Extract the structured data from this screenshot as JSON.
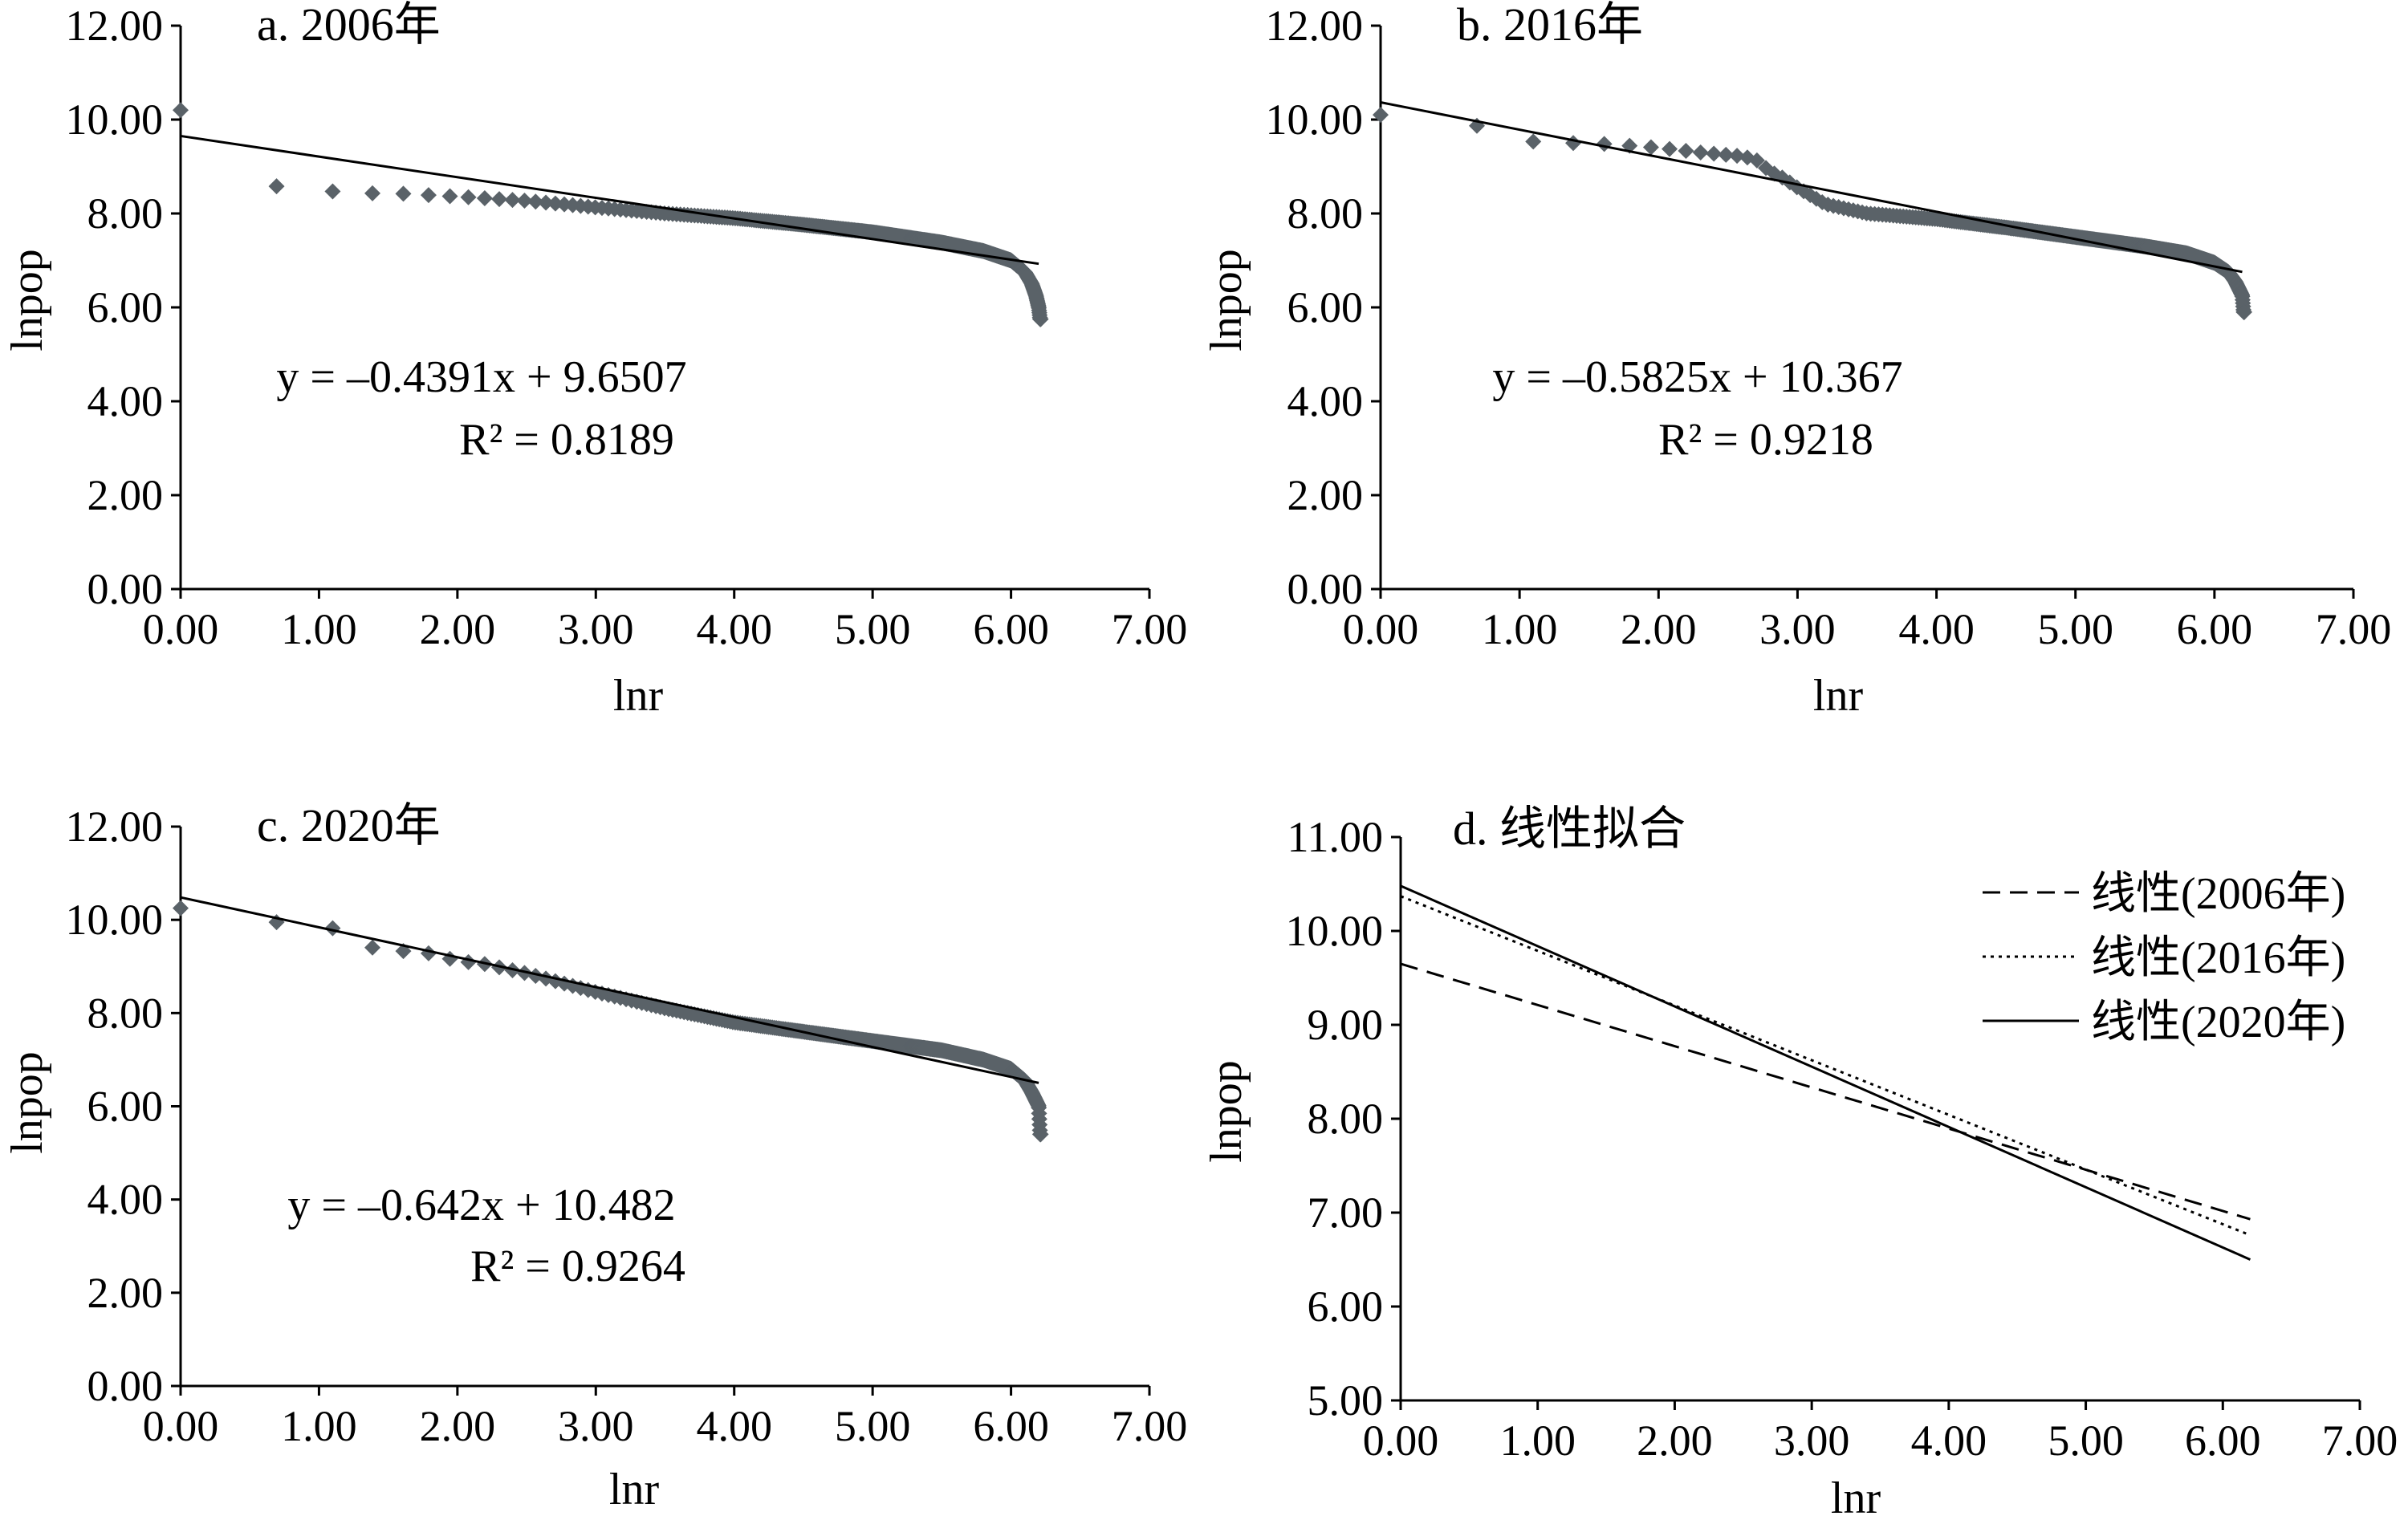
{
  "chart_data": [
    {
      "type": "scatter",
      "title": "a. 2006年",
      "xlabel": "lnr",
      "ylabel": "lnpop",
      "xlim": [
        0,
        7
      ],
      "ylim": [
        0,
        12
      ],
      "x_ticks": [
        "0.00",
        "1.00",
        "2.00",
        "3.00",
        "4.00",
        "5.00",
        "6.00",
        "7.00"
      ],
      "y_ticks": [
        "0.00",
        "2.00",
        "4.00",
        "6.00",
        "8.00",
        "10.00",
        "12.00"
      ],
      "grid": false,
      "equation": "y = –0.4391x + 9.6507",
      "r_squared": "R² = 0.8189",
      "trendline": {
        "slope": -0.4391,
        "intercept": 9.6507,
        "x_range": [
          0,
          6.2
        ]
      },
      "profile": [
        [
          0,
          10.2
        ],
        [
          0.69,
          8.58
        ],
        [
          1.1,
          8.47
        ],
        [
          1.39,
          8.43
        ],
        [
          1.61,
          8.42
        ],
        [
          2.0,
          8.36
        ],
        [
          2.5,
          8.27
        ],
        [
          3.0,
          8.13
        ],
        [
          3.5,
          8.0
        ],
        [
          4.0,
          7.9
        ],
        [
          4.5,
          7.76
        ],
        [
          5.0,
          7.6
        ],
        [
          5.5,
          7.38
        ],
        [
          5.8,
          7.2
        ],
        [
          6.0,
          7.0
        ],
        [
          6.1,
          6.75
        ],
        [
          6.15,
          6.5
        ],
        [
          6.18,
          6.25
        ],
        [
          6.2,
          6.0
        ],
        [
          6.21,
          5.75
        ]
      ]
    },
    {
      "type": "scatter",
      "title": "b. 2016年",
      "xlabel": "lnr",
      "ylabel": "lnpop",
      "xlim": [
        0,
        7
      ],
      "ylim": [
        0,
        12
      ],
      "x_ticks": [
        "0.00",
        "1.00",
        "2.00",
        "3.00",
        "4.00",
        "5.00",
        "6.00",
        "7.00"
      ],
      "y_ticks": [
        "0.00",
        "2.00",
        "4.00",
        "6.00",
        "8.00",
        "10.00",
        "12.00"
      ],
      "grid": false,
      "equation": "y = –0.5825x + 10.367",
      "r_squared": "R² = 0.9218",
      "trendline": {
        "slope": -0.5825,
        "intercept": 10.367,
        "x_range": [
          0,
          6.2
        ]
      },
      "profile": [
        [
          0,
          10.1
        ],
        [
          0.69,
          9.87
        ],
        [
          1.1,
          9.53
        ],
        [
          1.39,
          9.5
        ],
        [
          1.61,
          9.48
        ],
        [
          2.0,
          9.4
        ],
        [
          2.3,
          9.3
        ],
        [
          2.6,
          9.22
        ],
        [
          2.7,
          9.15
        ],
        [
          2.8,
          8.9
        ],
        [
          2.9,
          8.75
        ],
        [
          3.0,
          8.55
        ],
        [
          3.2,
          8.2
        ],
        [
          3.5,
          8.0
        ],
        [
          4.0,
          7.88
        ],
        [
          4.5,
          7.7
        ],
        [
          5.0,
          7.5
        ],
        [
          5.5,
          7.3
        ],
        [
          5.8,
          7.15
        ],
        [
          6.0,
          6.95
        ],
        [
          6.1,
          6.75
        ],
        [
          6.15,
          6.55
        ],
        [
          6.2,
          6.25
        ],
        [
          6.21,
          5.9
        ]
      ]
    },
    {
      "type": "scatter",
      "title": "c. 2020年",
      "xlabel": "lnr",
      "ylabel": "lnpop",
      "xlim": [
        0,
        7
      ],
      "ylim": [
        0,
        12
      ],
      "x_ticks": [
        "0.00",
        "1.00",
        "2.00",
        "3.00",
        "4.00",
        "5.00",
        "6.00",
        "7.00"
      ],
      "y_ticks": [
        "0.00",
        "2.00",
        "4.00",
        "6.00",
        "8.00",
        "10.00",
        "12.00"
      ],
      "grid": false,
      "equation": "y = –0.642x + 10.482",
      "r_squared": "R² = 0.9264",
      "trendline": {
        "slope": -0.642,
        "intercept": 10.482,
        "x_range": [
          0,
          6.2
        ]
      },
      "profile": [
        [
          0,
          10.25
        ],
        [
          0.69,
          9.95
        ],
        [
          1.1,
          9.82
        ],
        [
          1.39,
          9.4
        ],
        [
          1.61,
          9.33
        ],
        [
          1.8,
          9.28
        ],
        [
          2.0,
          9.12
        ],
        [
          2.2,
          9.05
        ],
        [
          2.5,
          8.85
        ],
        [
          3.0,
          8.45
        ],
        [
          3.5,
          8.1
        ],
        [
          4.0,
          7.8
        ],
        [
          4.5,
          7.6
        ],
        [
          5.0,
          7.4
        ],
        [
          5.5,
          7.2
        ],
        [
          5.8,
          7.0
        ],
        [
          6.0,
          6.8
        ],
        [
          6.1,
          6.55
        ],
        [
          6.15,
          6.3
        ],
        [
          6.2,
          6.0
        ],
        [
          6.21,
          5.4
        ]
      ]
    },
    {
      "type": "line",
      "title": "d. 线性拟合",
      "xlabel": "lnr",
      "ylabel": "lnpop",
      "xlim": [
        0,
        7
      ],
      "ylim": [
        5,
        11
      ],
      "x_ticks": [
        "0.00",
        "1.00",
        "2.00",
        "3.00",
        "4.00",
        "5.00",
        "6.00",
        "7.00"
      ],
      "y_ticks": [
        "5.00",
        "6.00",
        "7.00",
        "8.00",
        "9.00",
        "10.00",
        "11.00"
      ],
      "grid": false,
      "legend_position": "top-right",
      "series": [
        {
          "name": "线性(2006年)",
          "style": "dashed",
          "slope": -0.4391,
          "intercept": 9.6507,
          "x": [
            0,
            6.2
          ],
          "y": [
            9.65,
            6.93
          ]
        },
        {
          "name": "线性(2016年)",
          "style": "dotted",
          "slope": -0.5825,
          "intercept": 10.367,
          "x": [
            0,
            6.2
          ],
          "y": [
            10.37,
            6.76
          ]
        },
        {
          "name": "线性(2020年)",
          "style": "solid",
          "slope": -0.642,
          "intercept": 10.482,
          "x": [
            0,
            6.2
          ],
          "y": [
            10.48,
            6.5
          ]
        }
      ]
    }
  ]
}
